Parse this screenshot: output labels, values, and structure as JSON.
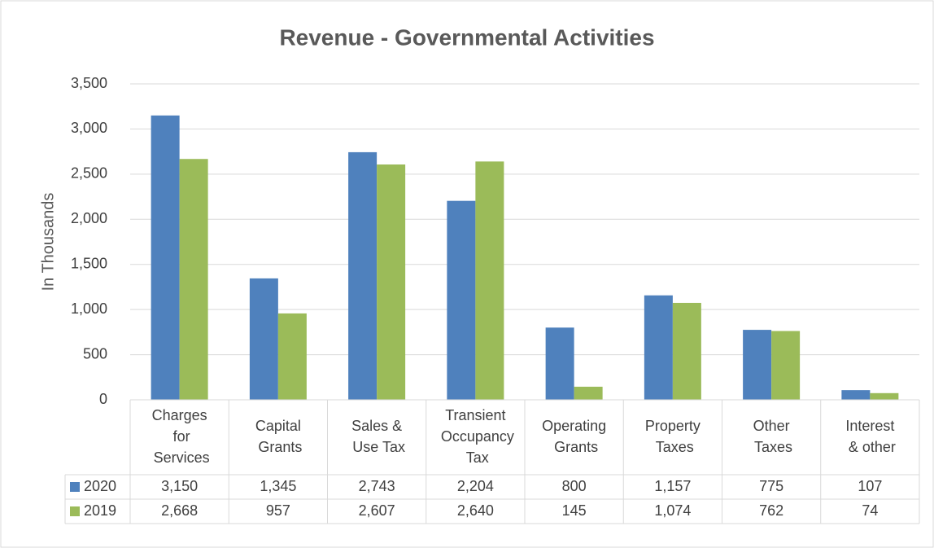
{
  "chart_data": {
    "type": "bar",
    "title": "Revenue - Governmental Activities",
    "y_label": "In Thousands",
    "categories": [
      "Charges for Services",
      "Capital Grants",
      "Sales & Use Tax",
      "Transient Occupancy Tax",
      "Operating Grants",
      "Property Taxes",
      "Other Taxes",
      "Interest & other"
    ],
    "series": [
      {
        "name": "2020",
        "color": "#4f81bd",
        "values": [
          3150,
          1345,
          2743,
          2204,
          800,
          1157,
          775,
          107
        ],
        "value_labels": [
          "3,150",
          "1,345",
          "2,743",
          "2,204",
          "800",
          "1,157",
          "775",
          "107"
        ]
      },
      {
        "name": "2019",
        "color": "#9bbb59",
        "values": [
          2668,
          957,
          2607,
          2640,
          145,
          1074,
          762,
          74
        ],
        "value_labels": [
          "2,668",
          "957",
          "2,607",
          "2,640",
          "145",
          "1,074",
          "762",
          "74"
        ]
      }
    ],
    "ylim": [
      0,
      3500
    ],
    "yticks": [
      0,
      500,
      {
        "value": 1000,
        "label": "1,000"
      },
      {
        "value": 1500,
        "label": "1,500"
      },
      {
        "value": 2000,
        "label": "2,000"
      },
      {
        "value": 2500,
        "label": "2,500"
      },
      {
        "value": 3000,
        "label": "3,000"
      },
      {
        "value": 3500,
        "label": "3,500"
      }
    ],
    "grid": true
  }
}
